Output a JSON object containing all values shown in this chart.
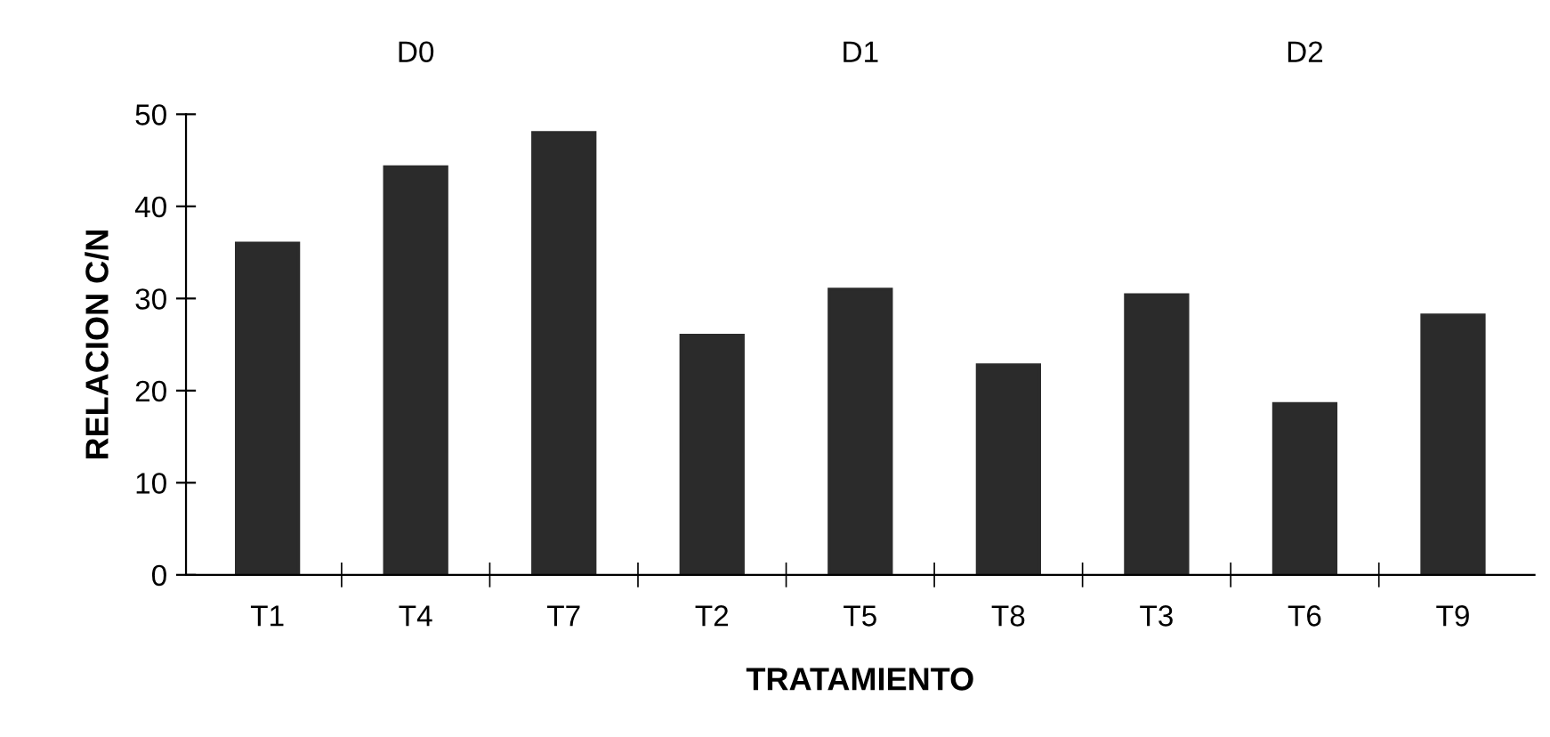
{
  "chart_data": {
    "type": "bar",
    "xlabel": "TRATAMIENTO",
    "ylabel": "RELACION C/N",
    "categories": [
      "T1",
      "T4",
      "T7",
      "T2",
      "T5",
      "T8",
      "T3",
      "T6",
      "T9"
    ],
    "values": [
      36,
      44.3,
      48,
      26,
      31,
      22.8,
      30.4,
      18.6,
      28.2
    ],
    "color": "#2b2b2b",
    "ylim": [
      0,
      50
    ],
    "yticks": [
      0,
      10,
      20,
      30,
      40,
      50
    ],
    "grid": false,
    "legend": false,
    "annotations": [
      "D0",
      "D1",
      "D2"
    ]
  }
}
